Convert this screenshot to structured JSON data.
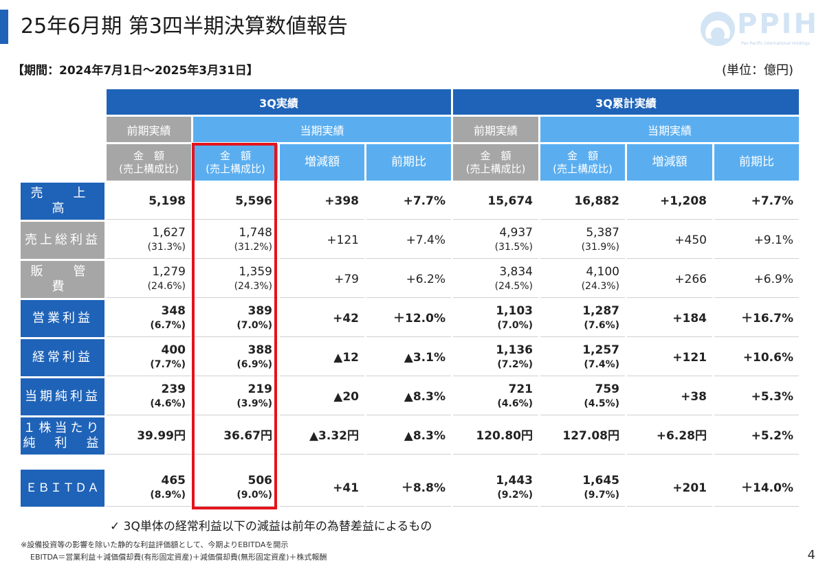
{
  "header": {
    "title": "25年6月期 第3四半期決算数値報告",
    "logo_text": "PPIH",
    "logo_subtext": "Pan Pacific International Holdings"
  },
  "period_label": "【期間：2024年7月1日～2025年3月31日】",
  "unit_label": "(単位：億円)",
  "table": {
    "group_headers": [
      "3Q実績",
      "3Q累計実績"
    ],
    "sub_headers": {
      "prior": "前期実績",
      "current": "当期実績"
    },
    "col_headers": {
      "amount_line1": "金　額",
      "amount_line2": "(売上構成比)",
      "change": "増減額",
      "ratio": "前期比"
    },
    "rows": [
      {
        "label": "売　上　高",
        "q_prior": "5,198",
        "q_prior_pct": "",
        "q_curr": "5,596",
        "q_curr_pct": "",
        "q_change": "+398",
        "q_ratio": "+7.7%",
        "c_prior": "15,674",
        "c_prior_pct": "",
        "c_curr": "16,882",
        "c_curr_pct": "",
        "c_change": "+1,208",
        "c_ratio": "+7.7%"
      },
      {
        "label": "売上総利益",
        "q_prior": "1,627",
        "q_prior_pct": "(31.3%)",
        "q_curr": "1,748",
        "q_curr_pct": "(31.2%)",
        "q_change": "+121",
        "q_ratio": "+7.4%",
        "c_prior": "4,937",
        "c_prior_pct": "(31.5%)",
        "c_curr": "5,387",
        "c_curr_pct": "(31.9%)",
        "c_change": "+450",
        "c_ratio": "+9.1%"
      },
      {
        "label": "販　管　費",
        "q_prior": "1,279",
        "q_prior_pct": "(24.6%)",
        "q_curr": "1,359",
        "q_curr_pct": "(24.3%)",
        "q_change": "+79",
        "q_ratio": "+6.2%",
        "c_prior": "3,834",
        "c_prior_pct": "(24.5%)",
        "c_curr": "4,100",
        "c_curr_pct": "(24.3%)",
        "c_change": "+266",
        "c_ratio": "+6.9%"
      },
      {
        "label": "営業利益",
        "q_prior": "348",
        "q_prior_pct": "(6.7%)",
        "q_curr": "389",
        "q_curr_pct": "(7.0%)",
        "q_change": "+42",
        "q_ratio": "＋12.0%",
        "c_prior": "1,103",
        "c_prior_pct": "(7.0%)",
        "c_curr": "1,287",
        "c_curr_pct": "(7.6%)",
        "c_change": "+184",
        "c_ratio": "＋16.7%"
      },
      {
        "label": "経常利益",
        "q_prior": "400",
        "q_prior_pct": "(7.7%)",
        "q_curr": "388",
        "q_curr_pct": "(6.9%)",
        "q_change": "▲12",
        "q_ratio": "▲3.1%",
        "c_prior": "1,136",
        "c_prior_pct": "(7.2%)",
        "c_curr": "1,257",
        "c_curr_pct": "(7.4%)",
        "c_change": "+121",
        "c_ratio": "+10.6%"
      },
      {
        "label": "当期純利益",
        "q_prior": "239",
        "q_prior_pct": "(4.6%)",
        "q_curr": "219",
        "q_curr_pct": "(3.9%)",
        "q_change": "▲20",
        "q_ratio": "▲8.3%",
        "c_prior": "721",
        "c_prior_pct": "(4.6%)",
        "c_curr": "759",
        "c_curr_pct": "(4.5%)",
        "c_change": "+38",
        "c_ratio": "+5.3%"
      },
      {
        "label_line1": "１株当たり",
        "label_line2": "純　利　益",
        "q_prior": "39.99円",
        "q_curr": "36.67円",
        "q_change": "▲3.32円",
        "q_ratio": "▲8.3%",
        "c_prior": "120.80円",
        "c_curr": "127.08円",
        "c_change": "+6.28円",
        "c_ratio": "+5.2%"
      },
      {
        "label": "ＥＢＩＴＤＡ",
        "q_prior": "465",
        "q_prior_pct": "(8.9%)",
        "q_curr": "506",
        "q_curr_pct": "(9.0%)",
        "q_change": "+41",
        "q_ratio": "＋8.8%",
        "c_prior": "1,443",
        "c_prior_pct": "(9.2%)",
        "c_curr": "1,645",
        "c_curr_pct": "(9.7%)",
        "c_change": "+201",
        "c_ratio": "＋14.0%"
      }
    ]
  },
  "note": "✓ 3Q単体の経常利益以下の減益は前年の為替差益によるもの",
  "footnote_1": "※設備投資等の影響を除いた静的な利益評価額として、今期よりEBITDAを開示",
  "footnote_2": "EBITDA＝営業利益＋減価償却費(有形固定資産)＋減価償却費(無形固定資産)＋株式報酬",
  "page_number": "4",
  "colors": {
    "accent_blue": "#1f63b8",
    "light_blue": "#5aaef0",
    "gray": "#a6a6a6",
    "highlight_red": "#e4131b"
  }
}
